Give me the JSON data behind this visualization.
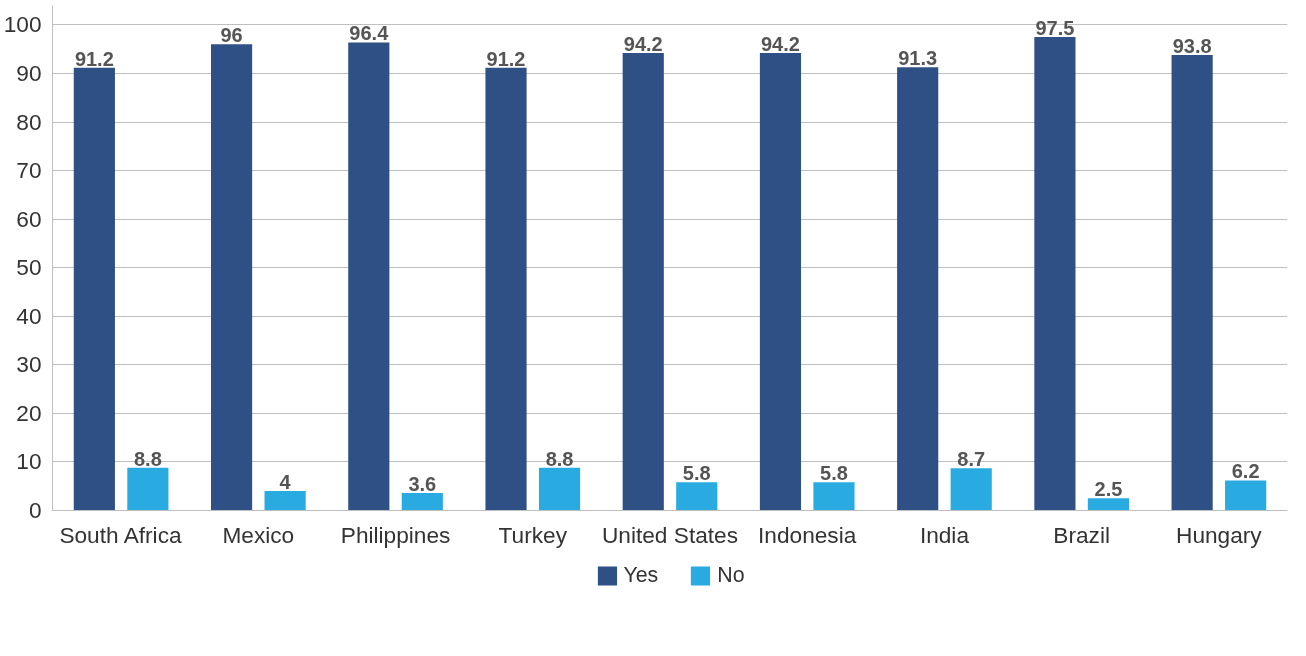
{
  "chart_data": {
    "type": "bar",
    "categories": [
      "South Africa",
      "Mexico",
      "Philippines",
      "Turkey",
      "United States",
      "Indonesia",
      "India",
      "Brazil",
      "Hungary"
    ],
    "series": [
      {
        "name": "Yes",
        "color": "#2f5084",
        "values": [
          91.2,
          96,
          96.4,
          91.2,
          94.2,
          94.2,
          91.3,
          97.5,
          93.8
        ]
      },
      {
        "name": "No",
        "color": "#29abe2",
        "values": [
          8.8,
          4,
          3.6,
          8.8,
          5.8,
          5.8,
          8.7,
          2.5,
          6.2
        ]
      }
    ],
    "ylim": [
      0,
      104
    ],
    "yticks": [
      0,
      10,
      20,
      30,
      40,
      50,
      60,
      70,
      80,
      90,
      100
    ],
    "grid": "y",
    "legend": "bottom",
    "data_labels": true
  }
}
